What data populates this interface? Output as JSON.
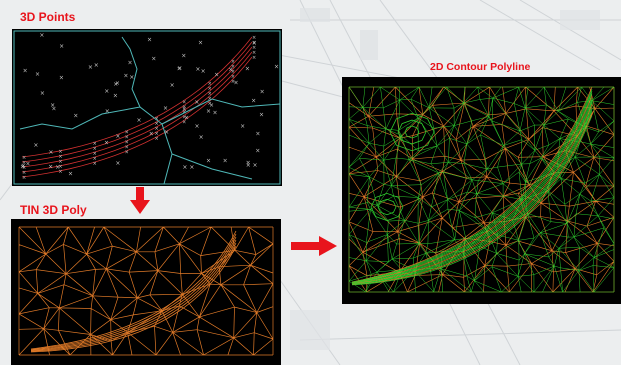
{
  "labels": {
    "points": "3D Points",
    "tin": "TIN 3D Poly",
    "contour": "2D Contour Polyline"
  },
  "colors": {
    "label": "#e8141c",
    "arrow": "#e8141c",
    "panel_bg": "#000000",
    "point_marker": "#c8c8c8",
    "road_lines": "#d03030",
    "breaklines": "#4fb8b8",
    "tin_edges": "#e07a28",
    "contour_green": "#2ecc2e",
    "contour_orange": "#e07a28"
  },
  "icons": {
    "down_arrow": "arrow-down-icon",
    "right_arrow": "arrow-right-icon"
  }
}
